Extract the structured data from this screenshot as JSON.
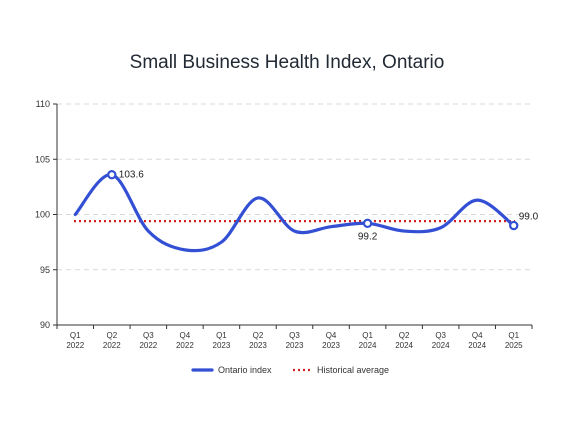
{
  "chart_data": {
    "type": "line",
    "title": "Small Business Health Index, Ontario",
    "xlabel": "",
    "ylabel": "",
    "ylim": [
      90,
      110
    ],
    "yticks": [
      90,
      95,
      100,
      105,
      110
    ],
    "grid": "horizontal-dashed",
    "legend_position": "bottom",
    "categories": [
      [
        "Q1",
        "2022"
      ],
      [
        "Q2",
        "2022"
      ],
      [
        "Q3",
        "2022"
      ],
      [
        "Q4",
        "2022"
      ],
      [
        "Q1",
        "2023"
      ],
      [
        "Q2",
        "2023"
      ],
      [
        "Q3",
        "2023"
      ],
      [
        "Q4",
        "2023"
      ],
      [
        "Q1",
        "2024"
      ],
      [
        "Q2",
        "2024"
      ],
      [
        "Q3",
        "2024"
      ],
      [
        "Q4",
        "2024"
      ],
      [
        "Q1",
        "2025"
      ]
    ],
    "series": [
      {
        "name": "Ontario index",
        "color": "#3350d4",
        "values": [
          100.0,
          103.6,
          98.5,
          96.8,
          97.5,
          101.5,
          98.5,
          98.9,
          99.2,
          98.5,
          98.8,
          101.3,
          99.0
        ]
      }
    ],
    "reference_line": {
      "name": "Historical average",
      "color": "#d42020",
      "value": 99.4
    },
    "annotations": [
      {
        "index": 1,
        "text": "103.6",
        "position": "right"
      },
      {
        "index": 8,
        "text": "99.2",
        "position": "below"
      },
      {
        "index": 12,
        "text": "99.0",
        "position": "above-right"
      }
    ]
  }
}
